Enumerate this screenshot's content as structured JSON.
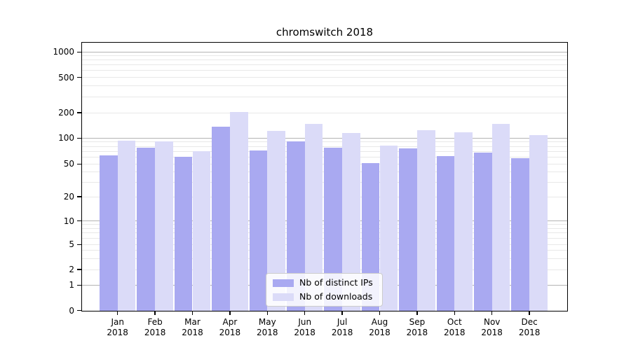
{
  "chart_data": {
    "type": "bar",
    "title": "chromswitch 2018",
    "categories": [
      "Jan",
      "Feb",
      "Mar",
      "Apr",
      "May",
      "Jun",
      "Jul",
      "Aug",
      "Sep",
      "Oct",
      "Nov",
      "Dec"
    ],
    "x_year": "2018",
    "series": [
      {
        "name": "Nb of distinct IPs",
        "color": "#a9a9f1",
        "values": [
          63,
          78,
          61,
          136,
          72,
          92,
          77,
          51,
          76,
          62,
          68,
          58
        ]
      },
      {
        "name": "Nb of downloads",
        "color": "#dbdbf8",
        "values": [
          93,
          92,
          71,
          203,
          121,
          147,
          115,
          82,
          124,
          118,
          147,
          109
        ]
      }
    ],
    "yscale": "log-like (symlog with 0 shown)",
    "ytick_labels": [
      0,
      1,
      2,
      5,
      10,
      20,
      50,
      100,
      200,
      500,
      1000
    ],
    "ylim": [
      0,
      1000
    ],
    "xlabel": "",
    "ylabel": "",
    "grid": "horizontal, major dark at decades + light minors",
    "legend_position": "lower center",
    "grid_major_color": "#b3b3b3",
    "grid_minor_color": "#e8e8e8"
  }
}
